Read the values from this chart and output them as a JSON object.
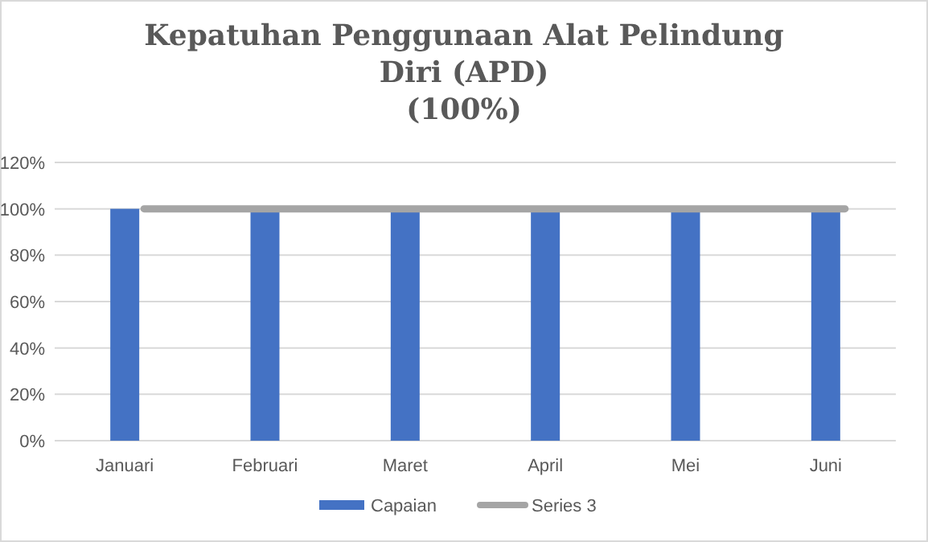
{
  "chart_data": {
    "type": "bar",
    "title": "Kepatuhan Penggunaan Alat Pelindung Diri (APD) (100%)",
    "categories": [
      "Januari",
      "Februari",
      "Maret",
      "April",
      "Mei",
      "Juni"
    ],
    "series": [
      {
        "name": "Capaian",
        "color": "#4472c4",
        "values": [
          100,
          99,
          99,
          99,
          99,
          99
        ]
      },
      {
        "name": "Series 3",
        "color": "#a5a5a5",
        "type": "line",
        "values": [
          100,
          100,
          100,
          100,
          100,
          100
        ]
      }
    ],
    "ylim": [
      0,
      120
    ],
    "yticks": [
      {
        "value": 0,
        "label": "0%"
      },
      {
        "value": 20,
        "label": "20%"
      },
      {
        "value": 40,
        "label": "40%"
      },
      {
        "value": 60,
        "label": "60%"
      },
      {
        "value": 80,
        "label": "80%"
      },
      {
        "value": 100,
        "label": "100%"
      },
      {
        "value": 120,
        "label": "120%"
      }
    ],
    "grid": "y",
    "legend": "bottom",
    "marker": "none"
  }
}
